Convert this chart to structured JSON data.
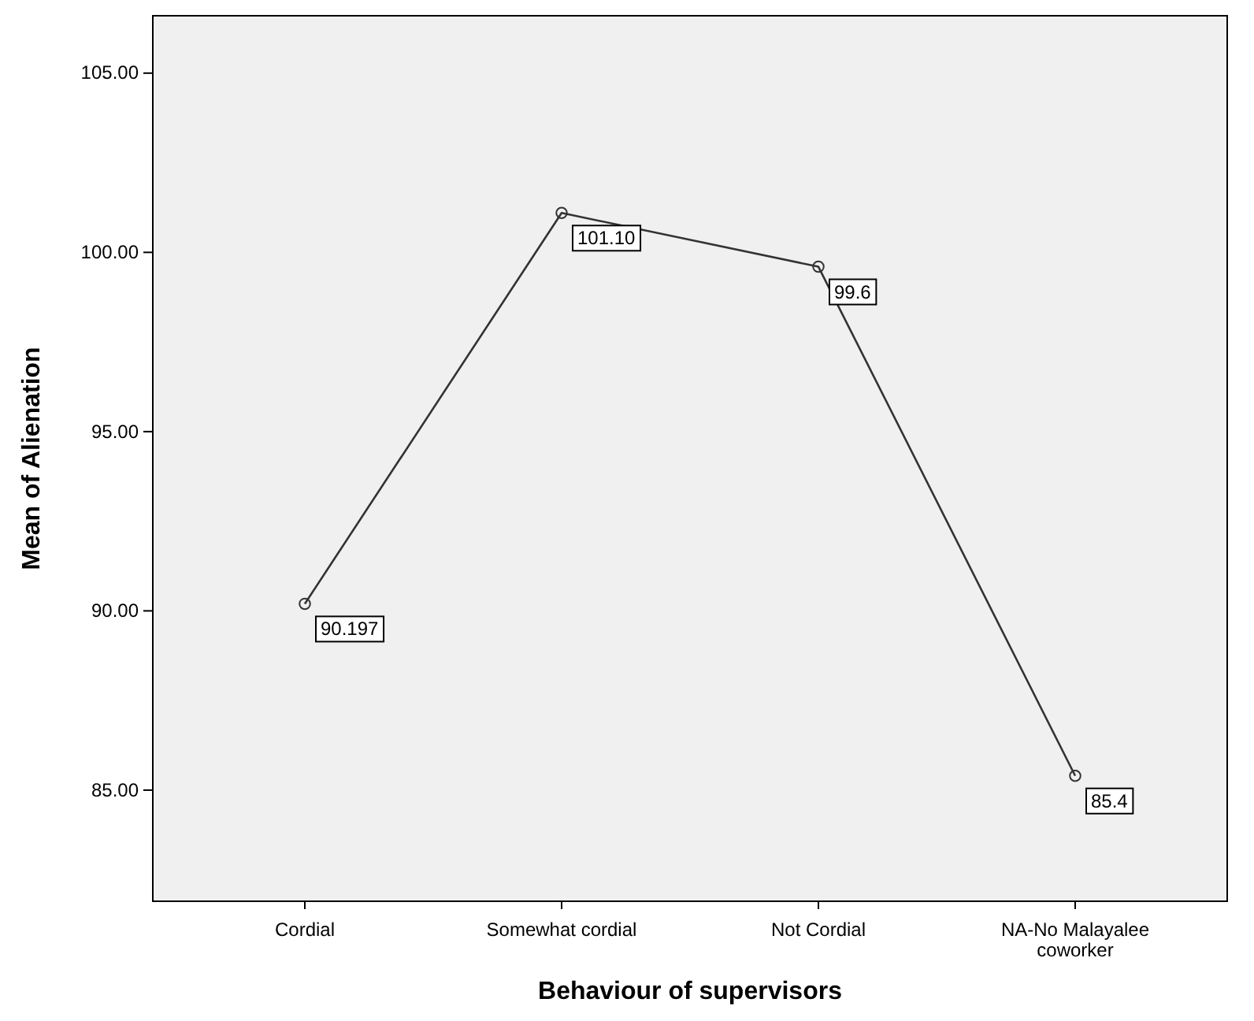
{
  "chart_data": {
    "type": "line",
    "xlabel": "Behaviour of supervisors",
    "ylabel": "Mean of Alienation",
    "categories": [
      "Cordial",
      "Somewhat cordial",
      "Not Cordial",
      "NA-No Malayalee coworker"
    ],
    "series": [
      {
        "color": "#333333",
        "values": [
          90.197,
          101.1,
          99.6,
          85.4
        ],
        "value_labels": [
          "90.197",
          "101.10",
          "99.6",
          "85.4"
        ]
      }
    ],
    "ylim": [
      81.9,
      106.6
    ],
    "yticks": [
      {
        "value": 85,
        "label": "85.00"
      },
      {
        "value": 90,
        "label": "90.00"
      },
      {
        "value": 95,
        "label": "95.00"
      },
      {
        "value": 100,
        "label": "100.00"
      },
      {
        "value": 105,
        "label": "105.00"
      }
    ],
    "marker": "circle",
    "line_style": "solid"
  }
}
